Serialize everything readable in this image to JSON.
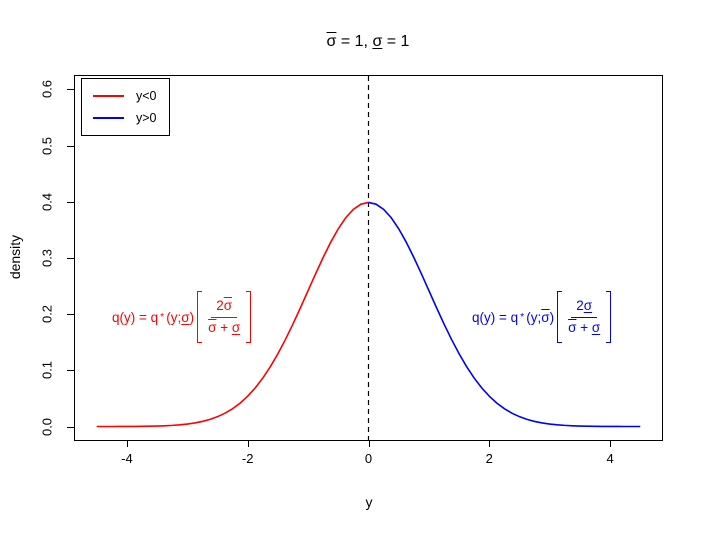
{
  "title": {
    "sigma_bar": "σ",
    "mid": " = 1, ",
    "sigma_under": "σ",
    "end": " = 1"
  },
  "chart_data": {
    "type": "line",
    "title": "σ̄ = 1, σ̲ = 1",
    "xlabel": "y",
    "ylabel": "density",
    "x_tick_values": [
      -4,
      -2,
      0,
      2,
      4
    ],
    "x_tick_labels": [
      "-4",
      "-2",
      "0",
      "2",
      "4"
    ],
    "y_tick_values": [
      0.0,
      0.1,
      0.2,
      0.3,
      0.4,
      0.5,
      0.6
    ],
    "y_tick_labels": [
      "0.0",
      "0.1",
      "0.2",
      "0.3",
      "0.4",
      "0.5",
      "0.6"
    ],
    "x_range": [
      -4.86,
      4.86
    ],
    "y_range": [
      -0.024,
      0.624
    ],
    "grid": false,
    "vline": {
      "x": 0,
      "style": "dashed",
      "color": "#000000"
    },
    "legend": {
      "position": "topleft",
      "entries": [
        {
          "label": "y<0",
          "color": "#FF0000"
        },
        {
          "label": "y>0",
          "color": "#0000FF"
        }
      ]
    },
    "series": [
      {
        "name": "y<0",
        "color": "#FF0000",
        "x": [
          -4.5,
          -4.375,
          -4.25,
          -4.125,
          -4,
          -3.875,
          -3.75,
          -3.625,
          -3.5,
          -3.375,
          -3.25,
          -3.125,
          -3,
          -2.875,
          -2.75,
          -2.625,
          -2.5,
          -2.375,
          -2.25,
          -2.125,
          -2,
          -1.875,
          -1.75,
          -1.625,
          -1.5,
          -1.375,
          -1.25,
          -1.125,
          -1,
          -0.875,
          -0.75,
          -0.625,
          -0.5,
          -0.375,
          -0.25,
          -0.125,
          0
        ],
        "y": [
          1.6e-05,
          2.8e-05,
          4.8e-05,
          8.1e-05,
          0.000134,
          0.000219,
          0.000353,
          0.000559,
          0.000873,
          0.001341,
          0.002029,
          0.003022,
          0.004432,
          0.006398,
          0.009094,
          0.012724,
          0.017528,
          0.023772,
          0.03174,
          0.041721,
          0.053991,
          0.068787,
          0.086277,
          0.106538,
          0.129518,
          0.155013,
          0.182649,
          0.211876,
          0.241971,
          0.272055,
          0.301137,
          0.328164,
          0.352065,
          0.371856,
          0.386668,
          0.395838,
          0.398942
        ]
      },
      {
        "name": "y>0",
        "color": "#0000FF",
        "x": [
          0,
          0.125,
          0.25,
          0.375,
          0.5,
          0.625,
          0.75,
          0.875,
          1,
          1.125,
          1.25,
          1.375,
          1.5,
          1.625,
          1.75,
          1.875,
          2,
          2.125,
          2.25,
          2.375,
          2.5,
          2.625,
          2.75,
          2.875,
          3,
          3.125,
          3.25,
          3.375,
          3.5,
          3.625,
          3.75,
          3.875,
          4,
          4.125,
          4.25,
          4.375,
          4.5
        ],
        "y": [
          0.398942,
          0.395838,
          0.386668,
          0.371856,
          0.352065,
          0.328164,
          0.301137,
          0.272055,
          0.241971,
          0.211876,
          0.182649,
          0.155013,
          0.129518,
          0.106538,
          0.086277,
          0.068787,
          0.053991,
          0.041721,
          0.03174,
          0.023772,
          0.017528,
          0.012724,
          0.009094,
          0.006398,
          0.004432,
          0.003022,
          0.002029,
          0.001341,
          0.000873,
          0.000559,
          0.000353,
          0.000219,
          0.000134,
          8.1e-05,
          4.8e-05,
          2.8e-05,
          1.6e-05
        ]
      }
    ]
  },
  "annotations": {
    "left": {
      "color": "#FF0000",
      "pre": "q(y) = q",
      "sup": "*",
      "arg_open": "(y;",
      "arg_sigma": "σ",
      "arg_close": ")",
      "num_coef": "2",
      "num_sigma": "σ",
      "den_sigma1": "σ",
      "den_op": " + ",
      "den_sigma2": "σ"
    },
    "right": {
      "color": "#0000FF",
      "pre": "q(y) = q",
      "sup": "*",
      "arg_open": "(y;",
      "arg_sigma": "σ",
      "arg_close": ")",
      "num_coef": "2",
      "num_sigma": "σ",
      "den_sigma1": "σ",
      "den_op": " + ",
      "den_sigma2": "σ"
    }
  }
}
